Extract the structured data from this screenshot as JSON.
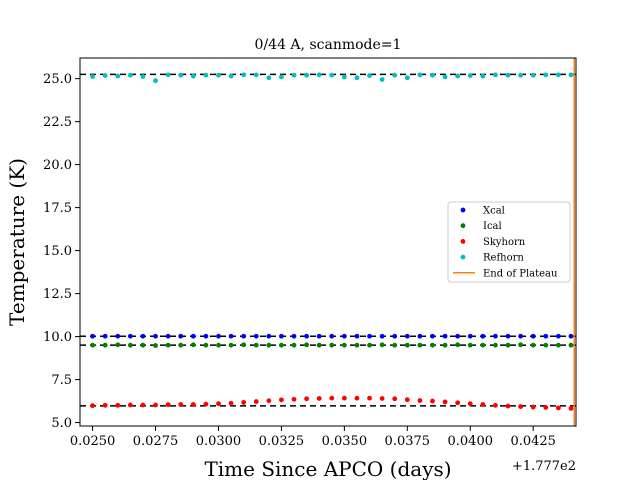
{
  "chart_data": {
    "type": "scatter",
    "title": "0/44 A, scanmode=1",
    "xlabel": "Time Since APCO (days)",
    "ylabel": "Temperature (K)",
    "x_offset_label": "+1.777e2",
    "xlim": [
      0.0245,
      0.0442
    ],
    "ylim": [
      4.8,
      26.2
    ],
    "x_ticks": [
      0.025,
      0.0275,
      0.03,
      0.0325,
      0.035,
      0.0375,
      0.04,
      0.0425
    ],
    "x_tick_labels": [
      "0.0250",
      "0.0275",
      "0.0300",
      "0.0325",
      "0.0350",
      "0.0375",
      "0.0400",
      "0.0425"
    ],
    "y_ticks": [
      5.0,
      7.5,
      10.0,
      12.5,
      15.0,
      17.5,
      20.0,
      22.5,
      25.0
    ],
    "y_tick_labels": [
      "5.0",
      "7.5",
      "10.0",
      "12.5",
      "15.0",
      "17.5",
      "20.0",
      "22.5",
      "25.0"
    ],
    "legend_position": "center-right",
    "grid": false,
    "x": [
      0.025,
      0.0255,
      0.026,
      0.0265,
      0.027,
      0.0275,
      0.028,
      0.0285,
      0.029,
      0.0295,
      0.03,
      0.0305,
      0.031,
      0.0315,
      0.032,
      0.0325,
      0.033,
      0.0335,
      0.034,
      0.0345,
      0.035,
      0.0355,
      0.036,
      0.0365,
      0.037,
      0.0375,
      0.038,
      0.0385,
      0.039,
      0.0395,
      0.04,
      0.0405,
      0.041,
      0.0415,
      0.042,
      0.0425,
      0.043,
      0.0435,
      0.044
    ],
    "series": [
      {
        "name": "Xcal",
        "color": "#0000ff",
        "values": [
          10.02,
          10.02,
          10.02,
          10.02,
          10.02,
          10.02,
          10.02,
          10.02,
          10.02,
          10.02,
          10.02,
          10.02,
          10.02,
          10.02,
          10.02,
          10.02,
          10.02,
          10.02,
          10.02,
          10.02,
          10.02,
          10.02,
          10.02,
          10.02,
          10.02,
          10.02,
          10.02,
          10.02,
          10.02,
          10.02,
          10.02,
          10.02,
          10.02,
          10.02,
          10.02,
          10.02,
          10.02,
          10.02,
          10.02
        ]
      },
      {
        "name": "Ical",
        "color": "#008000",
        "values": [
          9.5,
          9.5,
          9.52,
          9.5,
          9.5,
          9.48,
          9.5,
          9.5,
          9.52,
          9.5,
          9.5,
          9.5,
          9.52,
          9.5,
          9.5,
          9.5,
          9.5,
          9.52,
          9.5,
          9.5,
          9.5,
          9.5,
          9.5,
          9.52,
          9.5,
          9.5,
          9.5,
          9.5,
          9.5,
          9.52,
          9.5,
          9.5,
          9.5,
          9.5,
          9.52,
          9.5,
          9.5,
          9.5,
          9.5
        ]
      },
      {
        "name": "Skyhorn",
        "color": "#ff0000",
        "values": [
          5.98,
          6.0,
          6.0,
          6.02,
          6.02,
          6.02,
          6.04,
          6.05,
          6.05,
          6.07,
          6.1,
          6.12,
          6.17,
          6.22,
          6.27,
          6.32,
          6.35,
          6.38,
          6.4,
          6.42,
          6.42,
          6.42,
          6.42,
          6.4,
          6.38,
          6.33,
          6.28,
          6.25,
          6.2,
          6.15,
          6.1,
          6.05,
          6.0,
          5.96,
          5.93,
          5.9,
          5.88,
          5.85,
          5.82
        ]
      },
      {
        "name": "Refhorn",
        "color": "#00bfbf",
        "values": [
          25.12,
          25.18,
          25.15,
          25.2,
          25.12,
          24.88,
          25.22,
          25.2,
          25.15,
          25.2,
          25.2,
          25.15,
          25.22,
          25.22,
          25.05,
          25.1,
          25.2,
          25.2,
          25.22,
          25.2,
          25.1,
          25.05,
          25.18,
          24.95,
          25.2,
          25.05,
          25.22,
          25.2,
          25.1,
          25.15,
          25.18,
          25.15,
          25.22,
          25.2,
          25.2,
          25.2,
          25.22,
          25.22,
          25.22
        ]
      }
    ],
    "plateau_levels": [
      25.25,
      10.02,
      9.5,
      5.97
    ],
    "plateau_end_x": 0.04413,
    "plateau_end_label": "End of Plateau",
    "plateau_end_color": "#ff7f0e"
  }
}
